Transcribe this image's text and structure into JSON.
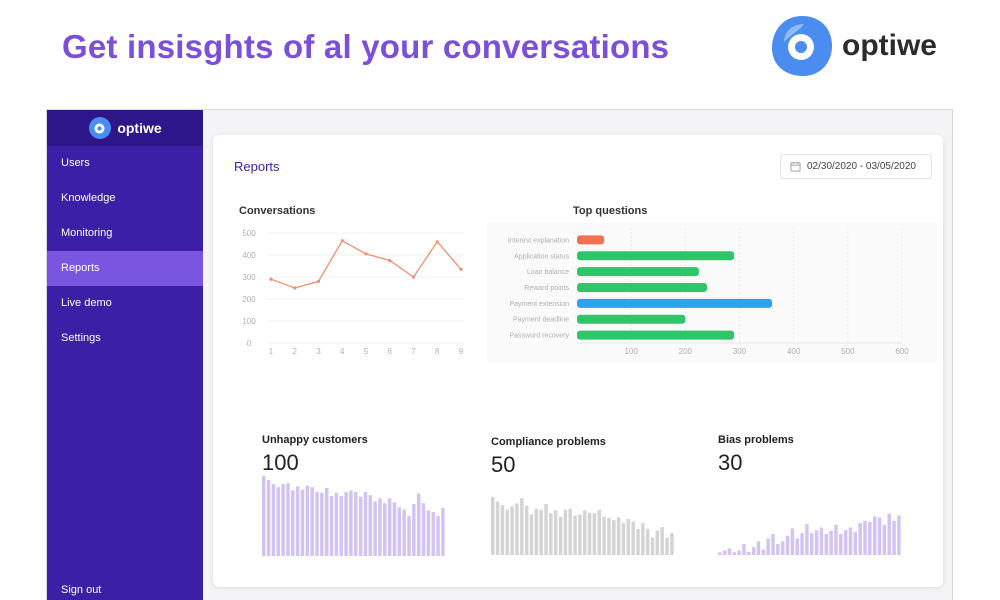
{
  "headline": "Get insisghts of al your conversations",
  "brand": {
    "name": "optiwe",
    "icon": "optiwe-logo-icon",
    "accent": "#4a8cf0"
  },
  "sidebar": {
    "logo_text": "optiwe",
    "items": [
      {
        "label": "Users",
        "active": false
      },
      {
        "label": "Knowledge",
        "active": false
      },
      {
        "label": "Monitoring",
        "active": false
      },
      {
        "label": "Reports",
        "active": true
      },
      {
        "label": "Live demo",
        "active": false
      },
      {
        "label": "Settings",
        "active": false
      }
    ],
    "signout_label": "Sign out"
  },
  "reports": {
    "title": "Reports",
    "date_range": "02/30/2020 - 03/05/2020",
    "date_icon": "calendar-icon"
  },
  "colors": {
    "sidebar": "#3b1fa6",
    "sidebar_active": "#7a55e0",
    "line": "#f0906a",
    "bar_green": "#2fc66a",
    "bar_blue": "#2aa4f0",
    "bar_orange": "#f07050",
    "bar_purple": "#d2c3f3",
    "bar_gray": "#d4d4d4"
  },
  "chart_data": [
    {
      "type": "line",
      "title": "Conversations",
      "x": [
        1,
        2,
        3,
        4,
        5,
        6,
        7,
        8,
        9
      ],
      "y": [
        290,
        250,
        280,
        465,
        405,
        375,
        300,
        460,
        335
      ],
      "ylim": [
        0,
        500
      ],
      "yticks": [
        0,
        100,
        200,
        300,
        400,
        500
      ],
      "grid": true
    },
    {
      "type": "bar",
      "orientation": "horizontal",
      "title": "Top questions",
      "categories": [
        "Interest explanation",
        "Application status",
        "Loan balance",
        "Reward points",
        "Payment extension",
        "Payment deadline",
        "Password recovery"
      ],
      "values": [
        50,
        290,
        225,
        240,
        360,
        200,
        290
      ],
      "bar_colors": [
        "#f07050",
        "#2fc66a",
        "#2fc66a",
        "#2fc66a",
        "#2aa4f0",
        "#2fc66a",
        "#2fc66a"
      ],
      "xticks": [
        100,
        200,
        300,
        400,
        500,
        600
      ],
      "xlim": [
        0,
        600
      ],
      "grid": true
    },
    {
      "type": "bar",
      "title": "Unhappy customers",
      "headline_value": "100",
      "values": [
        100,
        95,
        90,
        86,
        90,
        91,
        82,
        87,
        83,
        88,
        86,
        80,
        79,
        85,
        75,
        79,
        75,
        80,
        82,
        80,
        74,
        80,
        76,
        68,
        72,
        66,
        72,
        67,
        61,
        58,
        50,
        65,
        78,
        66,
        57,
        55,
        50,
        60
      ],
      "ylim": [
        0,
        100
      ]
    },
    {
      "type": "bar",
      "title": "Compliance problems",
      "headline_value": "50",
      "values": [
        100,
        92,
        86,
        78,
        84,
        89,
        98,
        85,
        70,
        80,
        78,
        88,
        72,
        77,
        66,
        78,
        80,
        68,
        70,
        77,
        73,
        72,
        78,
        66,
        64,
        60,
        65,
        55,
        62,
        58,
        45,
        55,
        45,
        30,
        42,
        48,
        30,
        38
      ],
      "ylim": [
        0,
        100
      ]
    },
    {
      "type": "bar",
      "title": "Bias problems",
      "headline_value": "30",
      "values": [
        5,
        8,
        12,
        5,
        8,
        20,
        6,
        14,
        25,
        10,
        30,
        38,
        20,
        25,
        35,
        48,
        30,
        40,
        56,
        40,
        45,
        50,
        38,
        44,
        55,
        38,
        45,
        50,
        42,
        58,
        62,
        60,
        70,
        68,
        55,
        75,
        62,
        72
      ],
      "ylim": [
        0,
        100
      ]
    }
  ]
}
